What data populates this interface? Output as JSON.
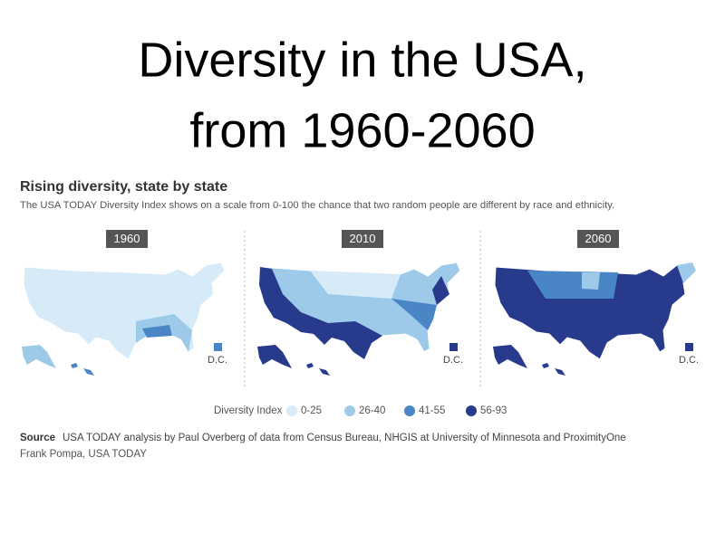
{
  "slide": {
    "title": [
      "Diversity in the USA,",
      "from 1960-2060"
    ]
  },
  "infographic": {
    "heading": "Rising diversity, state by state",
    "description": "The USA TODAY Diversity Index shows on a scale from 0-100 the chance that two random people are different by race and ethnicity.",
    "panels": [
      {
        "year": "1960",
        "dc": "D.C."
      },
      {
        "year": "2010",
        "dc": "D.C."
      },
      {
        "year": "2060",
        "dc": "D.C."
      }
    ],
    "legend": {
      "title": "Diversity Index",
      "items": [
        {
          "label": "0-25",
          "color": "#d6eaf8"
        },
        {
          "label": "26-40",
          "color": "#9ecae9"
        },
        {
          "label": "41-55",
          "color": "#4a86c5"
        },
        {
          "label": "56-93",
          "color": "#283a8c"
        }
      ]
    },
    "source": {
      "label": "Source",
      "text": "USA TODAY analysis by Paul Overberg of data from Census Bureau, NHGIS at University of Minnesota and ProximityOne"
    },
    "credit": "Frank Pompa, USA TODAY"
  }
}
